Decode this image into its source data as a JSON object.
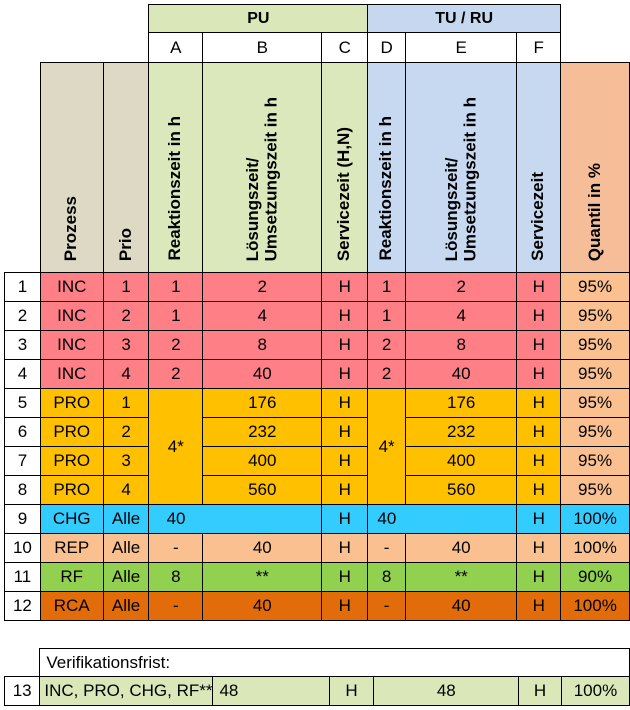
{
  "groups": {
    "pu": "PU",
    "tu": "TU / RU"
  },
  "letters": [
    "A",
    "B",
    "C",
    "D",
    "E",
    "F"
  ],
  "headers": {
    "prozess": "Prozess",
    "prio": "Prio",
    "a": "Reaktionszeit in h",
    "b1": "Lösungszeit/",
    "b2": "Umsetzungszeit in h",
    "c": "Servicezeit (H,N)",
    "d": "Reaktionszeit in h",
    "e1": "Lösungszeit/",
    "e2": "Umsetzungszeit in h",
    "f": "Servicezeit",
    "q": "Quantil in %"
  },
  "rows": [
    {
      "nr": "1",
      "prozess": "INC",
      "prio": "1",
      "a": "1",
      "b": "2",
      "c": "H",
      "d": "1",
      "e": "2",
      "f": "H",
      "q": "95%"
    },
    {
      "nr": "2",
      "prozess": "INC",
      "prio": "2",
      "a": "1",
      "b": "4",
      "c": "H",
      "d": "1",
      "e": "4",
      "f": "H",
      "q": "95%"
    },
    {
      "nr": "3",
      "prozess": "INC",
      "prio": "3",
      "a": "2",
      "b": "8",
      "c": "H",
      "d": "2",
      "e": "8",
      "f": "H",
      "q": "95%"
    },
    {
      "nr": "4",
      "prozess": "INC",
      "prio": "4",
      "a": "2",
      "b": "40",
      "c": "H",
      "d": "2",
      "e": "40",
      "f": "H",
      "q": "95%"
    },
    {
      "nr": "5",
      "prozess": "PRO",
      "prio": "1",
      "a": "4*",
      "b": "176",
      "c": "H",
      "d": "4*",
      "e": "176",
      "f": "H",
      "q": "95%"
    },
    {
      "nr": "6",
      "prozess": "PRO",
      "prio": "2",
      "b": "232",
      "c": "H",
      "e": "232",
      "f": "H",
      "q": "95%"
    },
    {
      "nr": "7",
      "prozess": "PRO",
      "prio": "3",
      "b": "400",
      "c": "H",
      "e": "400",
      "f": "H",
      "q": "95%"
    },
    {
      "nr": "8",
      "prozess": "PRO",
      "prio": "4",
      "b": "560",
      "c": "H",
      "e": "560",
      "f": "H",
      "q": "95%"
    },
    {
      "nr": "9",
      "prozess": "CHG",
      "prio": "Alle",
      "a": "40",
      "b": "",
      "c": "H",
      "d": "40",
      "e": "",
      "f": "H",
      "q": "100%"
    },
    {
      "nr": "10",
      "prozess": "REP",
      "prio": "Alle",
      "a": "-",
      "b": "40",
      "c": "H",
      "d": "-",
      "e": "40",
      "f": "H",
      "q": "100%"
    },
    {
      "nr": "11",
      "prozess": "RF",
      "prio": "Alle",
      "a": "8",
      "b": "**",
      "c": "H",
      "d": "8",
      "e": "**",
      "f": "H",
      "q": "90%"
    },
    {
      "nr": "12",
      "prozess": "RCA",
      "prio": "Alle",
      "a": "-",
      "b": "40",
      "c": "H",
      "d": "-",
      "e": "40",
      "f": "H",
      "q": "100%"
    }
  ],
  "verification": {
    "label": "Verifikationsfrist:",
    "nr": "13",
    "prozess": "INC, PRO, CHG, RF**",
    "b": "48",
    "c": "H",
    "e": "48",
    "f": "H",
    "q": "100%"
  }
}
